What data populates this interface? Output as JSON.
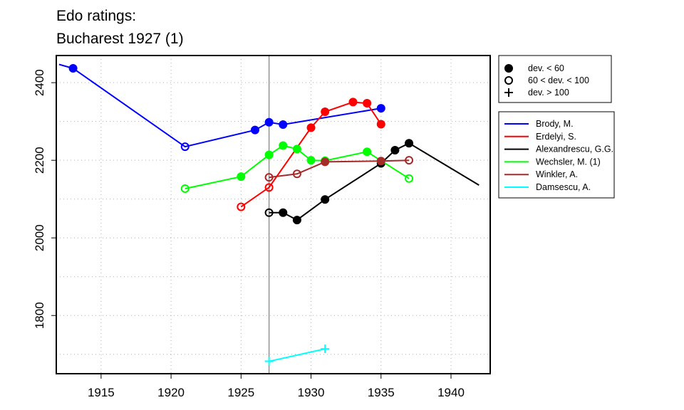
{
  "chart_data": {
    "type": "line",
    "title": "Edo ratings:",
    "subtitle": "Bucharest 1927 (1)",
    "xlabel": "",
    "ylabel": "",
    "xlim": [
      1911.8,
      1942.8
    ],
    "ylim": [
      1650,
      2470
    ],
    "x_ticks": [
      1915,
      1920,
      1925,
      1930,
      1935,
      1940
    ],
    "y_ticks": [
      1800,
      2000,
      2200,
      2400
    ],
    "grid": true,
    "reference_line_x": 1927,
    "symbol_legend": [
      {
        "symbol": "filled",
        "label": "dev. < 60"
      },
      {
        "symbol": "open",
        "label": "60 < dev. < 100"
      },
      {
        "symbol": "plus",
        "label": "dev. > 100"
      }
    ],
    "legend_position": "outside-right",
    "series": [
      {
        "name": "Brody, M.",
        "color": "#0000ff",
        "line": [
          [
            1912,
            2447
          ],
          [
            1913,
            2437
          ],
          [
            1921,
            2235
          ],
          [
            1926,
            2278
          ],
          [
            1927,
            2298
          ],
          [
            1928,
            2292
          ],
          [
            1935,
            2334
          ]
        ],
        "points": [
          [
            1913,
            2437,
            "filled"
          ],
          [
            1921,
            2235,
            "open"
          ],
          [
            1926,
            2278,
            "filled"
          ],
          [
            1927,
            2298,
            "filled"
          ],
          [
            1928,
            2292,
            "filled"
          ],
          [
            1935,
            2334,
            "filled"
          ]
        ]
      },
      {
        "name": "Erdelyi, S.",
        "color": "#ff0000",
        "line": [
          [
            1925,
            2080
          ],
          [
            1927,
            2130
          ],
          [
            1930,
            2284
          ],
          [
            1931,
            2325
          ],
          [
            1933,
            2350
          ],
          [
            1934,
            2347
          ],
          [
            1935,
            2293
          ]
        ],
        "points": [
          [
            1925,
            2080,
            "open"
          ],
          [
            1927,
            2130,
            "open"
          ],
          [
            1930,
            2284,
            "filled"
          ],
          [
            1931,
            2325,
            "filled"
          ],
          [
            1933,
            2350,
            "filled"
          ],
          [
            1934,
            2347,
            "filled"
          ],
          [
            1935,
            2293,
            "filled"
          ]
        ]
      },
      {
        "name": "Alexandrescu, G.G.",
        "color": "#000000",
        "line": [
          [
            1927,
            2065
          ],
          [
            1928,
            2065
          ],
          [
            1929,
            2046
          ],
          [
            1931,
            2099
          ],
          [
            1935,
            2192
          ],
          [
            1936,
            2226
          ],
          [
            1937,
            2244
          ],
          [
            1942,
            2136
          ]
        ],
        "points": [
          [
            1927,
            2065,
            "open"
          ],
          [
            1928,
            2065,
            "filled"
          ],
          [
            1929,
            2046,
            "filled"
          ],
          [
            1931,
            2099,
            "filled"
          ],
          [
            1935,
            2192,
            "filled"
          ],
          [
            1936,
            2226,
            "filled"
          ],
          [
            1937,
            2244,
            "filled"
          ]
        ]
      },
      {
        "name": "Wechsler, M. (1)",
        "color": "#00ff00",
        "line": [
          [
            1921,
            2127
          ],
          [
            1925,
            2158
          ],
          [
            1927,
            2214
          ],
          [
            1928,
            2238
          ],
          [
            1929,
            2229
          ],
          [
            1930,
            2200
          ],
          [
            1931,
            2199
          ],
          [
            1934,
            2222
          ],
          [
            1937,
            2153
          ]
        ],
        "points": [
          [
            1921,
            2127,
            "open"
          ],
          [
            1925,
            2158,
            "filled"
          ],
          [
            1927,
            2214,
            "filled"
          ],
          [
            1928,
            2238,
            "filled"
          ],
          [
            1929,
            2229,
            "filled"
          ],
          [
            1930,
            2200,
            "filled"
          ],
          [
            1931,
            2199,
            "open"
          ],
          [
            1934,
            2222,
            "filled"
          ],
          [
            1937,
            2153,
            "open"
          ]
        ]
      },
      {
        "name": "Winkler, A.",
        "color": "#a52a2a",
        "line": [
          [
            1927,
            2156
          ],
          [
            1929,
            2165
          ],
          [
            1931,
            2196
          ],
          [
            1935,
            2198
          ],
          [
            1937,
            2200
          ]
        ],
        "points": [
          [
            1927,
            2156,
            "open"
          ],
          [
            1929,
            2165,
            "open"
          ],
          [
            1931,
            2196,
            "filled"
          ],
          [
            1935,
            2198,
            "filled"
          ],
          [
            1937,
            2200,
            "open"
          ]
        ]
      },
      {
        "name": "Damsescu, A.",
        "color": "#00ffff",
        "line": [
          [
            1927,
            1682
          ],
          [
            1931,
            1714
          ]
        ],
        "points": [
          [
            1927,
            1682,
            "plus"
          ],
          [
            1931,
            1714,
            "plus"
          ]
        ]
      }
    ]
  }
}
